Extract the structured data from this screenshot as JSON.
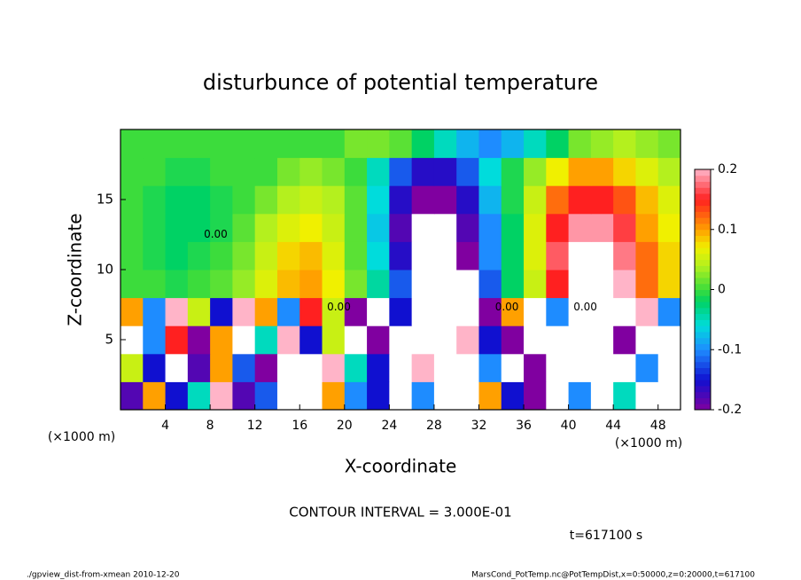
{
  "chart_data": {
    "type": "heatmap",
    "title": "disturbunce of potential temperature",
    "x_label": "X-coordinate",
    "y_label": "Z-coordinate",
    "x_unit": "(×1000 m)",
    "y_unit": "(×1000 m)",
    "note": "CONTOUR INTERVAL = 3.000E-01",
    "time": "t=617100 s",
    "footer_left": "./gpview_dist-from-xmean  2010-12-20",
    "footer_right": "MarsCond_PotTemp.nc@PotTempDist,x=0:50000,z=0:20000,t=617100",
    "xlim": [
      0,
      50
    ],
    "ylim": [
      0,
      20
    ],
    "xticks": [
      4,
      8,
      12,
      16,
      20,
      24,
      28,
      32,
      36,
      40,
      44,
      48
    ],
    "yticks": [
      5,
      10,
      15
    ],
    "x": [
      1,
      3,
      5,
      7,
      9,
      11,
      13,
      15,
      17,
      19,
      21,
      23,
      25,
      27,
      29,
      31,
      33,
      35,
      37,
      39,
      41,
      43,
      45,
      47,
      49
    ],
    "y": [
      1,
      3,
      5,
      7,
      9,
      11,
      13,
      15,
      17,
      19
    ],
    "values": [
      [
        -0.18,
        0.1,
        -0.15,
        -0.05,
        0.2,
        -0.18,
        -0.12,
        0.3,
        0.3,
        0.1,
        -0.1,
        -0.15,
        0.25,
        -0.1,
        0.3,
        0.25,
        0.1,
        -0.15,
        -0.2,
        0.3,
        -0.1,
        0.3,
        -0.05,
        0.3,
        0.3
      ],
      [
        0.05,
        -0.15,
        0.25,
        -0.18,
        0.1,
        -0.12,
        -0.2,
        0.25,
        0.3,
        0.2,
        -0.05,
        -0.15,
        0.3,
        0.2,
        0.3,
        0.25,
        -0.1,
        0.3,
        -0.2,
        0.3,
        0.3,
        0.3,
        0.3,
        -0.1,
        0.3
      ],
      [
        0.25,
        -0.1,
        0.15,
        -0.2,
        0.1,
        0.25,
        -0.05,
        0.2,
        -0.15,
        0.05,
        0.25,
        -0.2,
        0.3,
        0.3,
        -0.25,
        0.2,
        -0.15,
        -0.2,
        0.3,
        0.25,
        0.3,
        0.3,
        -0.2,
        0.3,
        0.3
      ],
      [
        0.1,
        -0.1,
        0.2,
        0.05,
        -0.15,
        0.2,
        0.1,
        -0.1,
        0.15,
        0.05,
        -0.2,
        0.25,
        -0.15,
        0.3,
        -0.3,
        0.25,
        -0.2,
        0.1,
        0.25,
        -0.1,
        -0.25,
        0.3,
        -0.3,
        0.2,
        -0.1
      ],
      [
        0,
        0,
        -0.01,
        0,
        0.01,
        0.03,
        0.06,
        0.09,
        0.1,
        0.07,
        0.02,
        -0.04,
        -0.12,
        -0.25,
        -0.25,
        -0.25,
        -0.12,
        -0.02,
        0.05,
        0.15,
        0.25,
        0.25,
        0.2,
        0.12,
        0.08
      ],
      [
        0,
        -0.01,
        -0.02,
        -0.01,
        0,
        0.02,
        0.05,
        0.08,
        0.09,
        0.06,
        0.01,
        -0.06,
        -0.16,
        -0.25,
        -0.25,
        -0.2,
        -0.1,
        -0.02,
        0.06,
        0.17,
        0.22,
        0.22,
        0.18,
        0.12,
        0.08
      ],
      [
        0,
        -0.01,
        -0.02,
        -0.02,
        -0.01,
        0.01,
        0.04,
        0.06,
        0.07,
        0.05,
        0.01,
        -0.07,
        -0.18,
        -0.22,
        -0.22,
        -0.18,
        -0.1,
        -0.02,
        0.06,
        0.15,
        0.19,
        0.19,
        0.16,
        0.1,
        0.07
      ],
      [
        0,
        -0.01,
        -0.02,
        -0.02,
        -0.01,
        0,
        0.02,
        0.04,
        0.05,
        0.04,
        0.01,
        -0.06,
        -0.16,
        -0.2,
        -0.2,
        -0.16,
        -0.08,
        -0.01,
        0.05,
        0.12,
        0.15,
        0.15,
        0.13,
        0.09,
        0.06
      ],
      [
        0,
        0,
        -0.01,
        -0.01,
        0,
        0,
        0,
        0.02,
        0.03,
        0.02,
        0,
        -0.05,
        -0.12,
        -0.16,
        -0.16,
        -0.12,
        -0.06,
        -0.01,
        0.03,
        0.07,
        0.1,
        0.1,
        0.08,
        0.06,
        0.04
      ],
      [
        0,
        0,
        0,
        0,
        0,
        0,
        0,
        0,
        0,
        0,
        0.02,
        0.02,
        0.01,
        -0.02,
        -0.05,
        -0.08,
        -0.1,
        -0.08,
        -0.05,
        -0.02,
        0.02,
        0.03,
        0.04,
        0.03,
        0.02
      ]
    ],
    "colorscale": [
      {
        "value": -0.2,
        "color": "#8000a0"
      },
      {
        "value": -0.15,
        "color": "#1010d0"
      },
      {
        "value": -0.1,
        "color": "#1e8cff"
      },
      {
        "value": -0.06,
        "color": "#00dcdc"
      },
      {
        "value": -0.02,
        "color": "#00d264"
      },
      {
        "value": 0,
        "color": "#3cdc3c"
      },
      {
        "value": 0.04,
        "color": "#b4f01e"
      },
      {
        "value": 0.07,
        "color": "#f0f000"
      },
      {
        "value": 0.1,
        "color": "#ffa000"
      },
      {
        "value": 0.15,
        "color": "#ff2020"
      },
      {
        "value": 0.2,
        "color": "#ffb4c8"
      }
    ],
    "out_of_range_color": "#ffffff",
    "clim": [
      -0.2,
      0.2
    ],
    "cticks": [
      -0.2,
      -0.1,
      0,
      0.1,
      0.2
    ],
    "annotations": [
      {
        "text": "0.00",
        "x": 19.5,
        "y": 7.3
      },
      {
        "text": "0.00",
        "x": 34.5,
        "y": 7.3
      },
      {
        "text": "0.00",
        "x": 41.5,
        "y": 7.3
      },
      {
        "text": "0.00",
        "x": 8.5,
        "y": 12.5
      }
    ]
  }
}
